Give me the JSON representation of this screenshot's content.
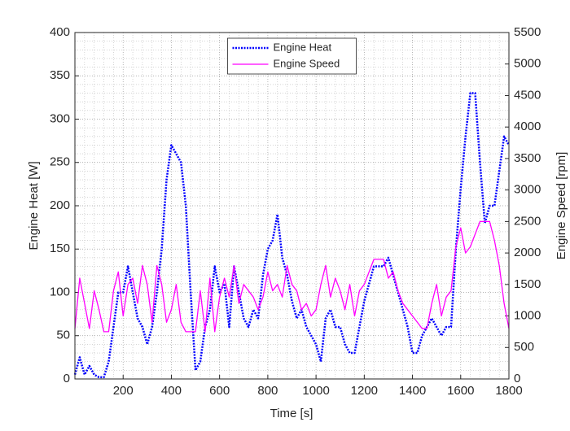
{
  "chart_data": {
    "type": "line",
    "x_label": "Time [s]",
    "y_label": "Engine Heat [W]",
    "y2_label": "Engine Speed [rpm]",
    "x": [
      0,
      20,
      40,
      60,
      80,
      100,
      120,
      140,
      160,
      180,
      200,
      220,
      240,
      260,
      280,
      300,
      320,
      340,
      360,
      380,
      400,
      420,
      440,
      460,
      480,
      500,
      520,
      540,
      560,
      580,
      600,
      620,
      640,
      660,
      680,
      700,
      720,
      740,
      760,
      780,
      800,
      820,
      840,
      860,
      880,
      900,
      920,
      940,
      960,
      980,
      1000,
      1020,
      1040,
      1060,
      1080,
      1100,
      1120,
      1140,
      1160,
      1180,
      1200,
      1220,
      1240,
      1260,
      1280,
      1300,
      1320,
      1340,
      1360,
      1380,
      1400,
      1420,
      1440,
      1460,
      1480,
      1500,
      1520,
      1540,
      1560,
      1580,
      1600,
      1620,
      1640,
      1660,
      1680,
      1700,
      1720,
      1740,
      1760,
      1780,
      1800
    ],
    "series": [
      {
        "name": "Engine Heat",
        "color": "#0000ff",
        "style": "dotted",
        "axis": "y",
        "values": [
          5,
          25,
          5,
          15,
          5,
          2,
          2,
          20,
          60,
          100,
          100,
          130,
          100,
          70,
          60,
          40,
          60,
          100,
          150,
          230,
          270,
          260,
          250,
          200,
          100,
          10,
          20,
          60,
          80,
          130,
          100,
          110,
          60,
          130,
          100,
          70,
          60,
          80,
          70,
          120,
          150,
          160,
          190,
          140,
          120,
          90,
          70,
          80,
          60,
          50,
          40,
          20,
          70,
          80,
          60,
          60,
          40,
          30,
          30,
          60,
          90,
          110,
          130,
          130,
          130,
          140,
          120,
          100,
          80,
          60,
          30,
          30,
          50,
          60,
          70,
          60,
          50,
          60,
          60,
          150,
          220,
          280,
          330,
          330,
          250,
          180,
          200,
          200,
          240,
          280,
          270
        ]
      },
      {
        "name": "Engine Speed",
        "color": "#ff00ff",
        "style": "solid",
        "axis": "y2",
        "values": [
          800,
          1600,
          1200,
          800,
          1400,
          1100,
          750,
          750,
          1400,
          1700,
          1000,
          1500,
          1600,
          1200,
          1800,
          1500,
          900,
          1800,
          1500,
          900,
          1100,
          1500,
          900,
          750,
          750,
          750,
          1400,
          750,
          1600,
          750,
          1300,
          1600,
          1300,
          1800,
          1200,
          1500,
          1400,
          1300,
          1100,
          1300,
          1700,
          1400,
          1500,
          1300,
          1800,
          1500,
          1400,
          1100,
          1200,
          1000,
          1100,
          1500,
          1800,
          1300,
          1600,
          1400,
          1100,
          1500,
          1000,
          1400,
          1500,
          1700,
          1900,
          1900,
          1900,
          1600,
          1700,
          1400,
          1200,
          1100,
          1000,
          900,
          800,
          800,
          1200,
          1500,
          1000,
          1300,
          1400,
          2100,
          2400,
          2000,
          2100,
          2300,
          2500,
          2500,
          2500,
          2200,
          1800,
          1200,
          800
        ]
      }
    ],
    "xlim": [
      0,
      1800
    ],
    "xticks": [
      200,
      400,
      600,
      800,
      1000,
      1200,
      1400,
      1600,
      1800
    ],
    "ylim": [
      0,
      400
    ],
    "yticks": [
      0,
      50,
      100,
      150,
      200,
      250,
      300,
      350,
      400
    ],
    "y2lim": [
      0,
      5500
    ],
    "y2ticks": [
      0,
      500,
      1000,
      1500,
      2000,
      2500,
      3000,
      3500,
      4000,
      4500,
      5000,
      5500
    ],
    "grid": true,
    "minor_grid": true,
    "legend": "upper center"
  }
}
